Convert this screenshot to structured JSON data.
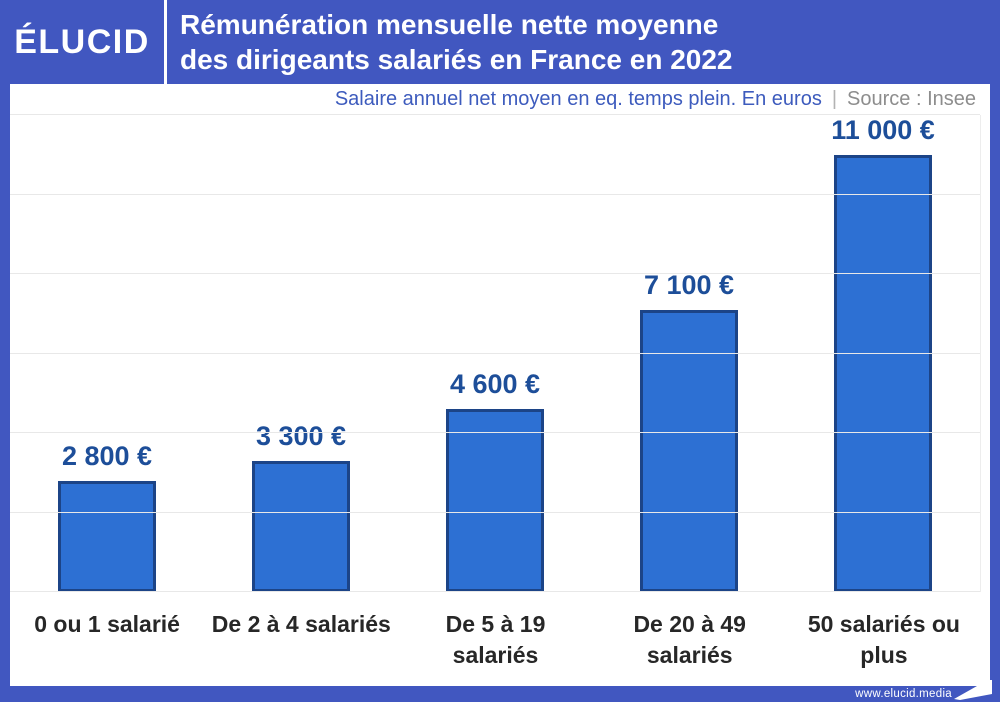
{
  "header": {
    "logo": "ÉLUCID",
    "title_line1": "Rémunération mensuelle nette moyenne",
    "title_line2": "des dirigeants salariés en France en 2022"
  },
  "subtitle": {
    "label": "Salaire annuel net moyen en eq. temps plein. En euros",
    "separator": "|",
    "source": "Source : Insee"
  },
  "chart_data": {
    "type": "bar",
    "title": "Rémunération mensuelle nette moyenne des dirigeants salariés en France en 2022",
    "subtitle": "Salaire annuel net moyen en eq. temps plein. En euros",
    "source": "Source : Insee",
    "categories": [
      "0 ou 1 salarié",
      "De 2 à 4 salariés",
      "De 5 à 19 salariés",
      "De 20 à 49 salariés",
      "50 salariés ou plus"
    ],
    "values": [
      2800,
      3300,
      4600,
      7100,
      11000
    ],
    "value_labels": [
      "2 800 €",
      "3 300 €",
      "4 600 €",
      "7 100 €",
      "11 000 €"
    ],
    "unit": "€",
    "xlabel": "",
    "ylabel": "",
    "ylim": [
      0,
      12000
    ],
    "gridline_step": 2000,
    "grid": true,
    "legend_position": "none",
    "y_tick_labels_visible": false
  },
  "footer": {
    "url": "www.elucid.media"
  },
  "colors": {
    "frame_blue": "#4157c0",
    "bar_fill": "#2d70d3",
    "bar_border": "#1c4487",
    "value_label": "#1d4e99",
    "subtitle_blue": "#3d5bbd",
    "source_gray": "#8d8d8d",
    "gridline": "#e8e8e8",
    "category_text": "#272727"
  }
}
